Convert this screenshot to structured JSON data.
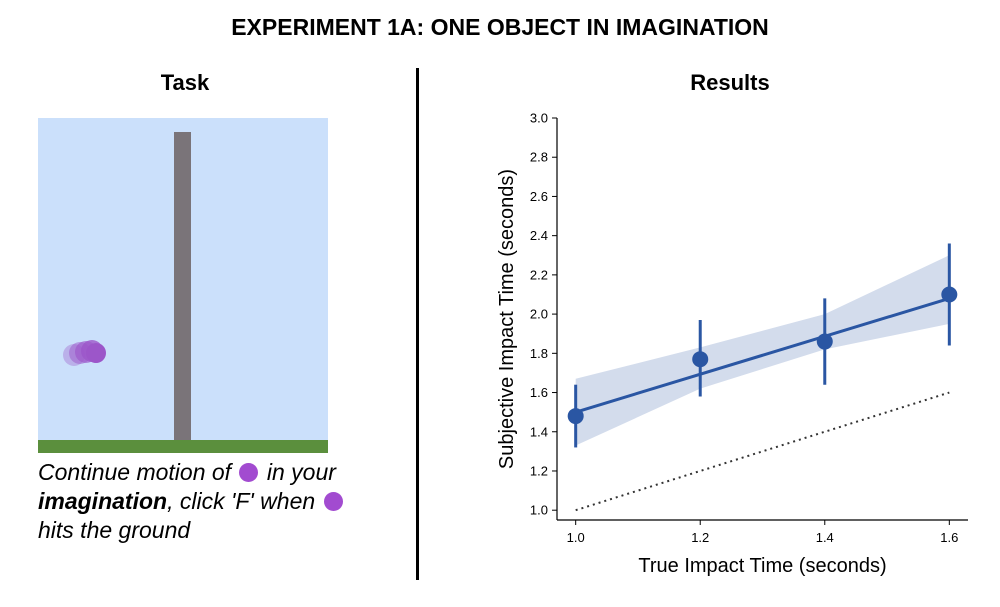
{
  "header": {
    "title": "EXPERIMENT 1A: ONE OBJECT IN IMAGINATION"
  },
  "task": {
    "title": "Task",
    "caption": {
      "part1": "Continue motion of",
      "part2": "in your",
      "bold": "imagination",
      "part3": ", click 'F' when",
      "part4": "hits the ground"
    },
    "colors": {
      "sky": "#cbe0fb",
      "ground": "#5b8f3d",
      "pillar": "#7a7479",
      "ball": "#9c56c9"
    }
  },
  "results": {
    "title": "Results"
  },
  "chart_data": {
    "type": "line",
    "xlabel": "True Impact Time (seconds)",
    "ylabel": "Subjective Impact Time (seconds)",
    "xlim": [
      0.97,
      1.63
    ],
    "ylim": [
      0.95,
      3.0
    ],
    "xticks": [
      1.0,
      1.2,
      1.4,
      1.6
    ],
    "xtick_labels": [
      "1.0",
      "1.2",
      "1.4",
      "1.6"
    ],
    "yticks": [
      1.0,
      1.2,
      1.4,
      1.6,
      1.8,
      2.0,
      2.2,
      2.4,
      2.6,
      2.8,
      3.0
    ],
    "ytick_labels": [
      "1.0",
      "1.2",
      "1.4",
      "1.6",
      "1.8",
      "2.0",
      "2.2",
      "2.4",
      "2.6",
      "2.8",
      "3.0"
    ],
    "points": {
      "x": [
        1.0,
        1.2,
        1.4,
        1.6
      ],
      "y": [
        1.48,
        1.77,
        1.86,
        2.1
      ],
      "err_low": [
        1.32,
        1.58,
        1.64,
        1.84
      ],
      "err_high": [
        1.64,
        1.97,
        2.08,
        2.36
      ]
    },
    "fit_line": {
      "x": [
        1.0,
        1.6
      ],
      "y": [
        1.5,
        2.08
      ]
    },
    "fit_band": {
      "x": [
        1.0,
        1.2,
        1.4,
        1.6
      ],
      "low": [
        1.33,
        1.62,
        1.82,
        1.95
      ],
      "high": [
        1.67,
        1.83,
        2.0,
        2.3
      ]
    },
    "identity_line": {
      "x": [
        1.0,
        1.6
      ],
      "y": [
        1.0,
        1.6
      ]
    },
    "colors": {
      "points": "#2a56a3",
      "band": "#d3dcec",
      "identity": "#333333"
    },
    "grid": false
  }
}
